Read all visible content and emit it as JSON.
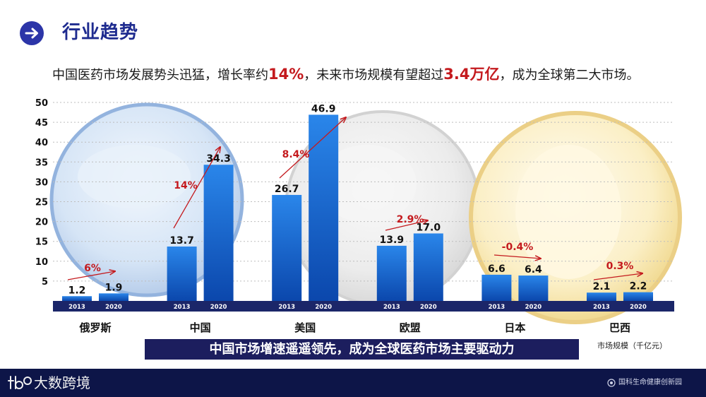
{
  "header": {
    "title": "行业趋势",
    "icon": "arrow-right-circle-icon"
  },
  "subtitle": {
    "segments": [
      "中国医药市场发展势头迅猛，增长率约",
      "14%",
      "，未来市场规模有望超过",
      "3.4万亿",
      "，成为全球第二大市场。"
    ]
  },
  "chart_data": {
    "type": "bar",
    "categories": [
      "俄罗斯",
      "中国",
      "美国",
      "欧盟",
      "日本",
      "巴西"
    ],
    "series": [
      {
        "name": "2013",
        "values": [
          1.2,
          13.7,
          26.7,
          13.9,
          6.6,
          2.1
        ]
      },
      {
        "name": "2020",
        "values": [
          1.9,
          34.3,
          46.9,
          17.0,
          6.4,
          2.2
        ]
      }
    ],
    "growth_rates": [
      "6%",
      "14%",
      "8.4%",
      "2.9%",
      "-0.4%",
      "0.3%"
    ],
    "ylim": [
      0,
      50
    ],
    "yticks": [
      5,
      10,
      15,
      20,
      25,
      30,
      35,
      40,
      45,
      50
    ],
    "unit_label": "市场规模（千亿元）",
    "grid": true
  },
  "banner": {
    "text": "中国市场增速遥遥领先，成为全球医药市场主要驱动力"
  },
  "footer": {
    "brand": "大数跨境",
    "brand_icon": "brand-logo-icon",
    "partner": "国科生命健康创新园",
    "partner_icon": "partner-logo-icon"
  },
  "colors": {
    "title": "#1e2b8f",
    "header_icon": "#2c35a8",
    "bar_top": "#2a86ea",
    "bar_bottom": "#0b47ac",
    "axis_band": "#1b2669",
    "growth": "#c41a1e",
    "highlight": "#c41a1e",
    "banner": "#1c1e5e",
    "footer": "#0d1548"
  }
}
